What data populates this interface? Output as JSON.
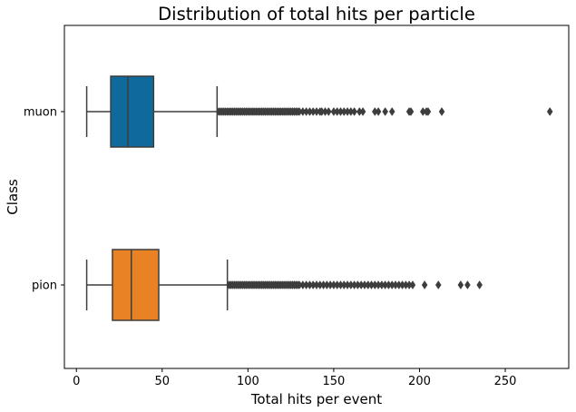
{
  "chart_data": {
    "type": "box",
    "orientation": "horizontal",
    "title": "Distribution of total hits per particle",
    "xlabel": "Total hits per event",
    "ylabel": "Class",
    "xlim": [
      -7,
      287
    ],
    "xticks": [
      0,
      50,
      100,
      150,
      200,
      250
    ],
    "grid": false,
    "series": [
      {
        "name": "muon",
        "color": "#0f6a9c",
        "whisker_low": 6,
        "q1": 20,
        "median": 30,
        "q3": 45,
        "whisker_high": 82,
        "outliers": [
          83,
          84,
          85,
          86,
          87,
          88,
          89,
          90,
          91,
          92,
          93,
          94,
          95,
          96,
          97,
          98,
          99,
          100,
          101,
          102,
          103,
          104,
          105,
          106,
          107,
          108,
          109,
          110,
          111,
          112,
          113,
          114,
          115,
          116,
          117,
          118,
          119,
          120,
          121,
          122,
          123,
          124,
          125,
          126,
          127,
          128,
          129,
          130,
          132,
          134,
          136,
          138,
          140,
          142,
          143,
          145,
          147,
          150,
          152,
          154,
          156,
          158,
          160,
          162,
          165,
          167,
          174,
          176,
          180,
          184,
          194,
          195,
          202,
          204,
          205,
          213,
          276
        ]
      },
      {
        "name": "pion",
        "color": "#e98225",
        "whisker_low": 6,
        "q1": 21,
        "median": 32,
        "q3": 48,
        "whisker_high": 88,
        "outliers": [
          89,
          90,
          91,
          92,
          93,
          94,
          95,
          96,
          97,
          98,
          99,
          100,
          101,
          102,
          103,
          104,
          105,
          106,
          107,
          108,
          109,
          110,
          111,
          112,
          113,
          114,
          115,
          116,
          117,
          118,
          119,
          120,
          121,
          122,
          123,
          124,
          125,
          126,
          127,
          128,
          129,
          130,
          132,
          134,
          136,
          138,
          140,
          142,
          144,
          146,
          148,
          150,
          152,
          154,
          156,
          158,
          160,
          162,
          164,
          166,
          168,
          170,
          172,
          174,
          176,
          178,
          180,
          182,
          184,
          186,
          188,
          190,
          192,
          194,
          196,
          203,
          211,
          224,
          228,
          235
        ]
      }
    ]
  }
}
